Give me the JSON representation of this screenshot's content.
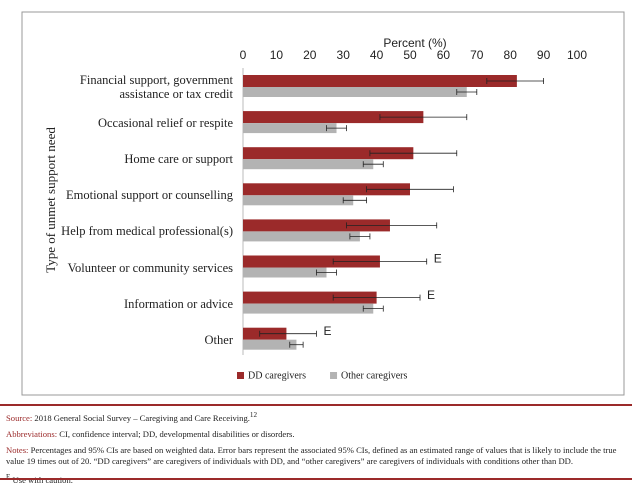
{
  "chart_data": {
    "type": "bar",
    "orientation": "horizontal",
    "xlabel": "Percent (%)",
    "ylabel": "Type of unmet support need",
    "xlim": [
      0,
      100
    ],
    "xticks": [
      0,
      10,
      20,
      30,
      40,
      50,
      60,
      70,
      80,
      90,
      100
    ],
    "categories": [
      "Financial support, government assistance or tax credit",
      "Occasional relief or respite",
      "Home care or support",
      "Emotional support or counselling",
      "Help from medical professional(s)",
      "Volunteer or community services",
      "Information or advice",
      "Other"
    ],
    "series": [
      {
        "name": "DD caregivers",
        "color": "#9b2a2a",
        "values": [
          82,
          54,
          51,
          50,
          44,
          41,
          40,
          13
        ],
        "ci_low": [
          73,
          41,
          38,
          37,
          31,
          27,
          27,
          5
        ],
        "ci_high": [
          90,
          67,
          64,
          63,
          58,
          55,
          53,
          22
        ],
        "flags": [
          null,
          null,
          null,
          null,
          null,
          "E",
          "E",
          "E"
        ]
      },
      {
        "name": "Other caregivers",
        "color": "#b3b3b3",
        "values": [
          67,
          28,
          39,
          33,
          35,
          25,
          39,
          16
        ],
        "ci_low": [
          64,
          25,
          36,
          30,
          32,
          22,
          36,
          14
        ],
        "ci_high": [
          70,
          31,
          42,
          37,
          38,
          28,
          42,
          18
        ]
      }
    ],
    "legend": "bottom"
  },
  "footer": {
    "source_label": "Source:",
    "source": "2018 General Social Survey – Caregiving and Care Receiving.",
    "source_ref": "12",
    "abbreviations_label": "Abbreviations:",
    "abbreviations": "CI, confidence interval; DD, developmental disabilities or disorders.",
    "notes_label": "Notes:",
    "notes": "Percentages and 95% CIs are based on weighted data. Error bars represent the associated 95% CIs, defined as an estimated range of values that is likely to include the true value 19 times out of 20. “DD caregivers” are caregivers of individuals with DD, and “other caregivers” are caregivers of individuals with conditions other than DD.",
    "caution_mark": "E",
    "caution": "Use with caution."
  }
}
